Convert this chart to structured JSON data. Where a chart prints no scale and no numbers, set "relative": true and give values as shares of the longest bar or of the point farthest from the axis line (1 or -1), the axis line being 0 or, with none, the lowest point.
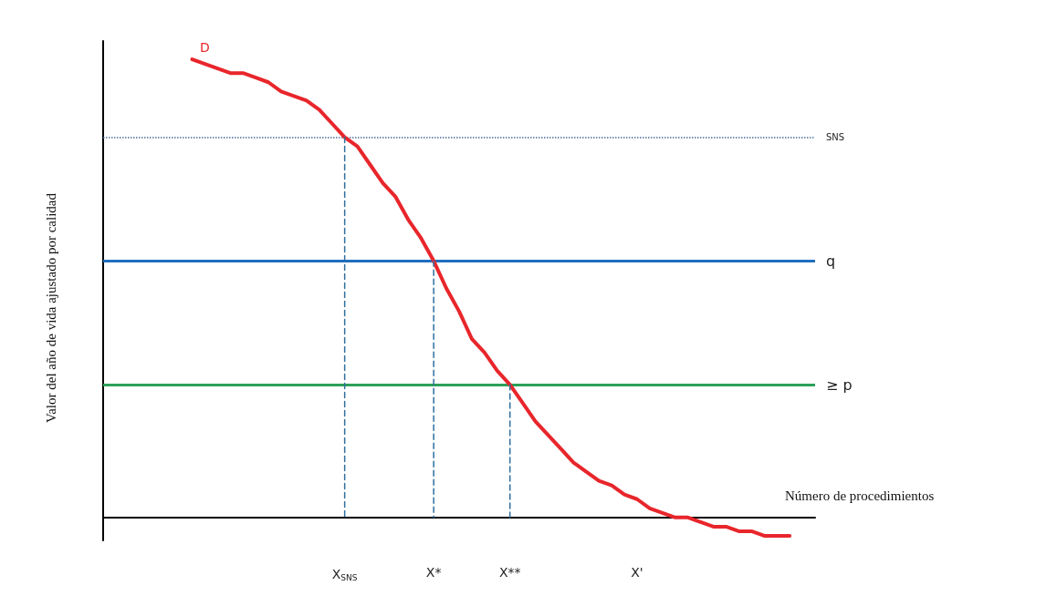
{
  "chart_data": {
    "type": "line",
    "relative": true,
    "xlabel": "Número de procedimientos",
    "ylabel": "Valor del año de vida ajustado por calidad",
    "categories": [
      null,
      null,
      null,
      null,
      null,
      null,
      null,
      null,
      null,
      null,
      null,
      null,
      null,
      null,
      null,
      null,
      null,
      null,
      null,
      "X$_{SNS}$",
      null,
      null,
      null,
      null,
      null,
      null,
      "X*",
      null,
      null,
      null,
      null,
      null,
      "X**",
      null,
      null,
      null,
      null,
      null,
      null,
      null,
      null,
      null,
      "X'",
      null,
      null,
      null,
      null,
      null,
      null,
      null,
      null,
      null,
      null,
      null,
      null,
      null,
      null
    ],
    "tick_labels": "x",
    "marker": "none",
    "series": [
      {
        "name": "D",
        "color": "#e8262b",
        "values": [
          null,
          null,
          null,
          null,
          null,
          null,
          null,
          1,
          0.99,
          0.98,
          0.97,
          0.97,
          0.96,
          0.95,
          0.93,
          0.92,
          0.91,
          0.89,
          0.86,
          0.83,
          0.81,
          0.77,
          0.73,
          0.7,
          0.65,
          0.61,
          0.56,
          0.5,
          0.45,
          0.39,
          0.36,
          0.32,
          0.29,
          0.25,
          0.21,
          0.18,
          0.15,
          0.12,
          0.1,
          0.08,
          0.07,
          0.05,
          0.04,
          0.02,
          0.01,
          0,
          0,
          -0.01,
          -0.02,
          -0.02,
          -0.03,
          -0.03,
          -0.04,
          -0.04,
          -0.04,
          null,
          null
        ]
      },
      {
        "type": "line",
        "color": "#2f6f9f",
        "line_style": "dashed",
        "x": [
          "X$_{SNS}$",
          "X$_{SNS}$"
        ],
        "values": [
          0.83,
          0
        ]
      },
      {
        "type": "line",
        "color": "#2f6f9f",
        "line_style": "dashed",
        "x": [
          "X*",
          "X*"
        ],
        "values": [
          0.56,
          0
        ]
      },
      {
        "type": "line",
        "color": "#2f6f9f",
        "line_style": "dashed",
        "x": [
          "X**",
          "X**"
        ],
        "values": [
          0.29,
          0
        ]
      }
    ],
    "ref_lines": [
      {
        "axis": "y",
        "value": 0.83,
        "label": "SNS",
        "color": "#4a6f9a",
        "line_style": "dotted"
      },
      {
        "axis": "y",
        "value": 0.56,
        "label": "q",
        "color": "#1f6fbf",
        "line_style": "solid"
      },
      {
        "axis": "y",
        "value": 0.29,
        "label": "≥ p",
        "color": "#2ca05a",
        "line_style": "solid"
      }
    ]
  }
}
